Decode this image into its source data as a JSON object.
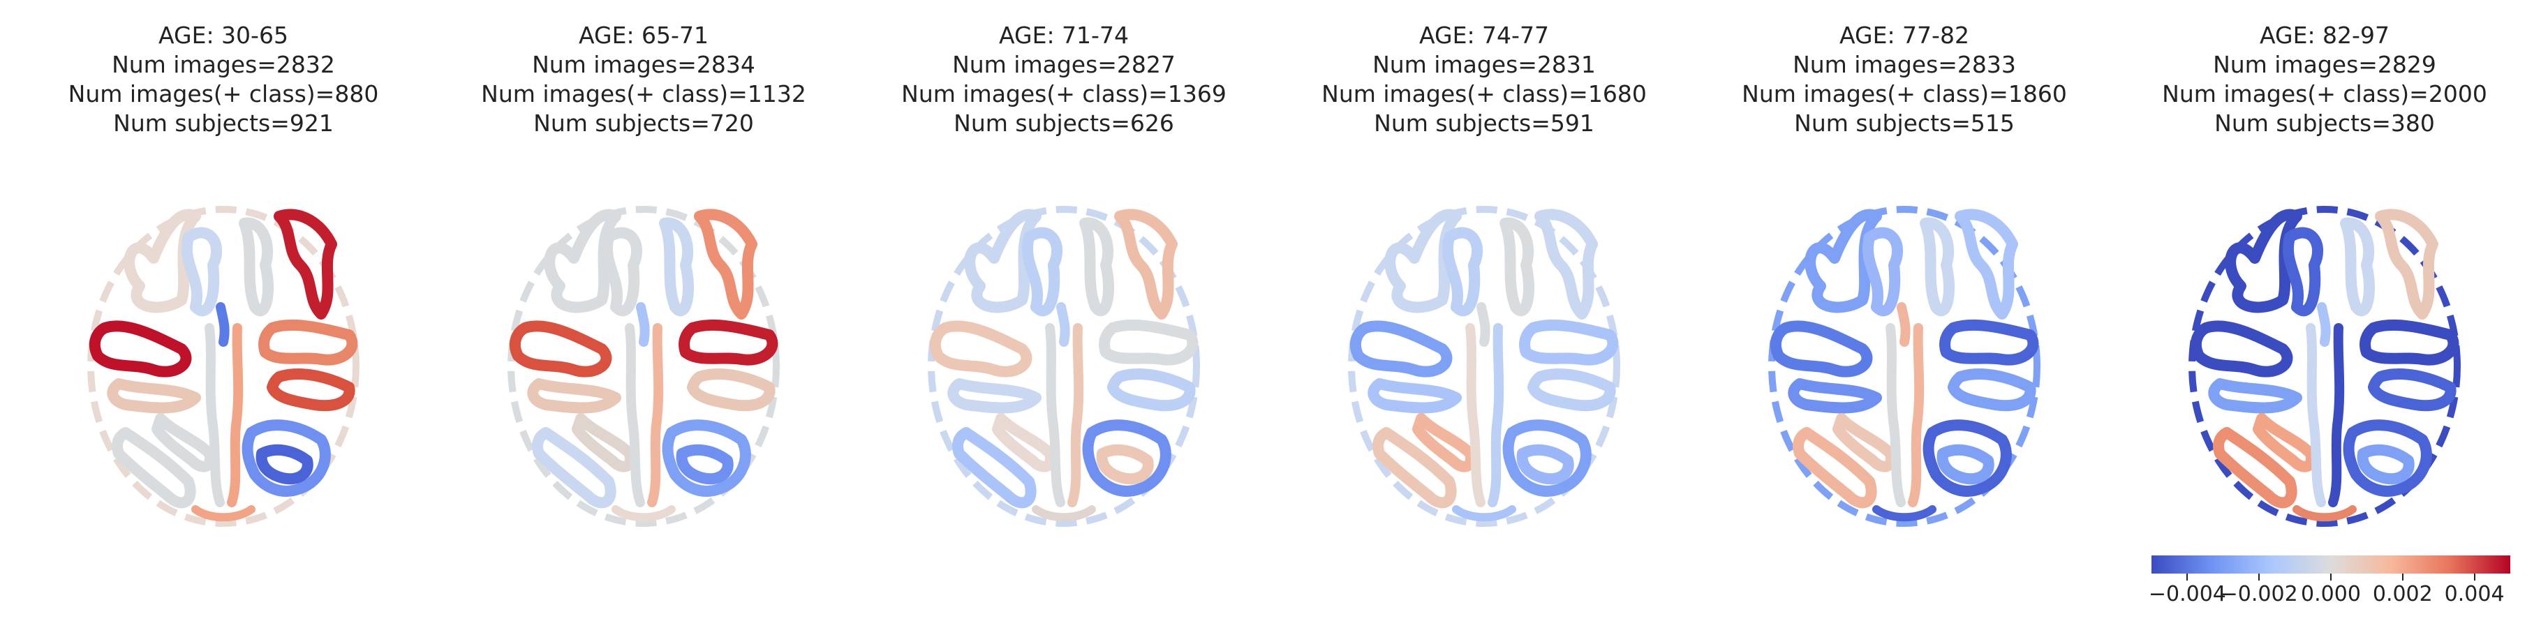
{
  "panels": [
    {
      "age": "AGE: 30-65",
      "num_images": "Num images=2832",
      "num_pos": "Num images(+ class)=880",
      "num_subjects": "Num subjects=921",
      "regions": {
        "lf_out": "#e8dad3",
        "lf_in": "#c9d7f0",
        "rf_out": "#c21e2e",
        "rf_in": "#d9dcdf",
        "lp_out": "#c0112b",
        "lp_in": "#e8c7b7",
        "rp_out": "#e8866a",
        "rp_in": "#d8523f",
        "lo_out": "#d9dcdf",
        "lo_in": "#d9dcdf",
        "ro_out": "#6f90f0",
        "ro_in": "#4a63d6",
        "mid_l": "#d9dcdf",
        "mid_r": "#f2a486",
        "ctr": "#5b7be6",
        "bot": "#f2a486"
      }
    },
    {
      "age": "AGE: 65-71",
      "num_images": "Num images=2834",
      "num_pos": "Num images(+ class)=1132",
      "num_subjects": "Num subjects=720",
      "regions": {
        "lf_out": "#d9dcdf",
        "lf_in": "#d9dcdf",
        "rf_out": "#ec8f72",
        "rf_in": "#c9d7f0",
        "lp_out": "#d8523f",
        "lp_in": "#e8c7b7",
        "rp_out": "#c21e2e",
        "rp_in": "#e8c7b7",
        "lo_out": "#c9d7f0",
        "lo_in": "#e0d4cf",
        "ro_out": "#7fa1f5",
        "ro_in": "#6f90f0",
        "mid_l": "#d9dcdf",
        "mid_r": "#f0b59c",
        "ctr": "#aac3f8",
        "bot": "#e8dad3"
      }
    },
    {
      "age": "AGE: 71-74",
      "num_images": "Num images=2827",
      "num_pos": "Num images(+ class)=1369",
      "num_subjects": "Num subjects=626",
      "regions": {
        "lf_out": "#c9d7f0",
        "lf_in": "#bcd0f5",
        "rf_out": "#edbda7",
        "rf_in": "#d9dcdf",
        "lp_out": "#ecc7b5",
        "lp_in": "#c9d7f0",
        "rp_out": "#d9dcdf",
        "rp_in": "#bcd0f5",
        "lo_out": "#aac3f8",
        "lo_in": "#e8dad3",
        "ro_out": "#6f90f0",
        "ro_in": "#ecc7b5",
        "mid_l": "#d9dcdf",
        "mid_r": "#ecc7b5",
        "ctr": "#bcd0f5",
        "bot": "#e0d4cf"
      }
    },
    {
      "age": "AGE: 74-77",
      "num_images": "Num images=2831",
      "num_pos": "Num images(+ class)=1680",
      "num_subjects": "Num subjects=591",
      "regions": {
        "lf_out": "#c9d7f0",
        "lf_in": "#bcd0f5",
        "rf_out": "#c9d7f0",
        "rf_in": "#d9dcdf",
        "lp_out": "#7fa1f5",
        "lp_in": "#aac3f8",
        "rp_out": "#aac3f8",
        "rp_in": "#bcd0f5",
        "lo_out": "#ecc7b5",
        "lo_in": "#f0b59c",
        "ro_out": "#7fa1f5",
        "ro_in": "#9ab5f8",
        "mid_l": "#e8dad3",
        "mid_r": "#bcd0f5",
        "ctr": "#d9dcdf",
        "bot": "#aac3f8"
      }
    },
    {
      "age": "AGE: 77-82",
      "num_images": "Num images=2833",
      "num_pos": "Num images(+ class)=1860",
      "num_subjects": "Num subjects=515",
      "regions": {
        "lf_out": "#7fa1f5",
        "lf_in": "#9ab5f8",
        "rf_out": "#aac3f8",
        "rf_in": "#c9d7f0",
        "lp_out": "#5b7be6",
        "lp_in": "#6f90f0",
        "rp_out": "#4a63d6",
        "rp_in": "#7fa1f5",
        "lo_out": "#f0b59c",
        "lo_in": "#ecc7b5",
        "ro_out": "#4a63d6",
        "ro_in": "#7fa1f5",
        "mid_l": "#d9dcdf",
        "mid_r": "#f0b59c",
        "ctr": "#f0b59c",
        "bot": "#4a63d6"
      }
    },
    {
      "age": "AGE: 82-97",
      "num_images": "Num images=2829",
      "num_pos": "Num images(+ class)=2000",
      "num_subjects": "Num subjects=380",
      "regions": {
        "lf_out": "#3b4cc0",
        "lf_in": "#4a63d6",
        "rf_out": "#e8c7b7",
        "rf_in": "#c9d7f0",
        "lp_out": "#3b4cc0",
        "lp_in": "#7fa1f5",
        "rp_out": "#3b4cc0",
        "rp_in": "#4a63d6",
        "lo_out": "#ec8f72",
        "lo_in": "#f2a486",
        "ro_out": "#4a63d6",
        "ro_in": "#7fa1f5",
        "mid_l": "#c9d7f0",
        "mid_r": "#3b4cc0",
        "ctr": "#aac3f8",
        "bot": "#e8866a"
      }
    }
  ],
  "colorbar": {
    "colormap": "coolwarm",
    "colors": [
      "#3b4cc0",
      "#6f92f3",
      "#aac7fd",
      "#dddcdc",
      "#f7b89c",
      "#e7745b",
      "#b40426"
    ],
    "range": [
      -0.005,
      0.005
    ],
    "ticks": [
      -0.004,
      -0.002,
      0.0,
      0.002,
      0.004
    ],
    "tick_labels": [
      "−0.004",
      "−0.002",
      "0.000",
      "0.002",
      "0.004"
    ]
  }
}
